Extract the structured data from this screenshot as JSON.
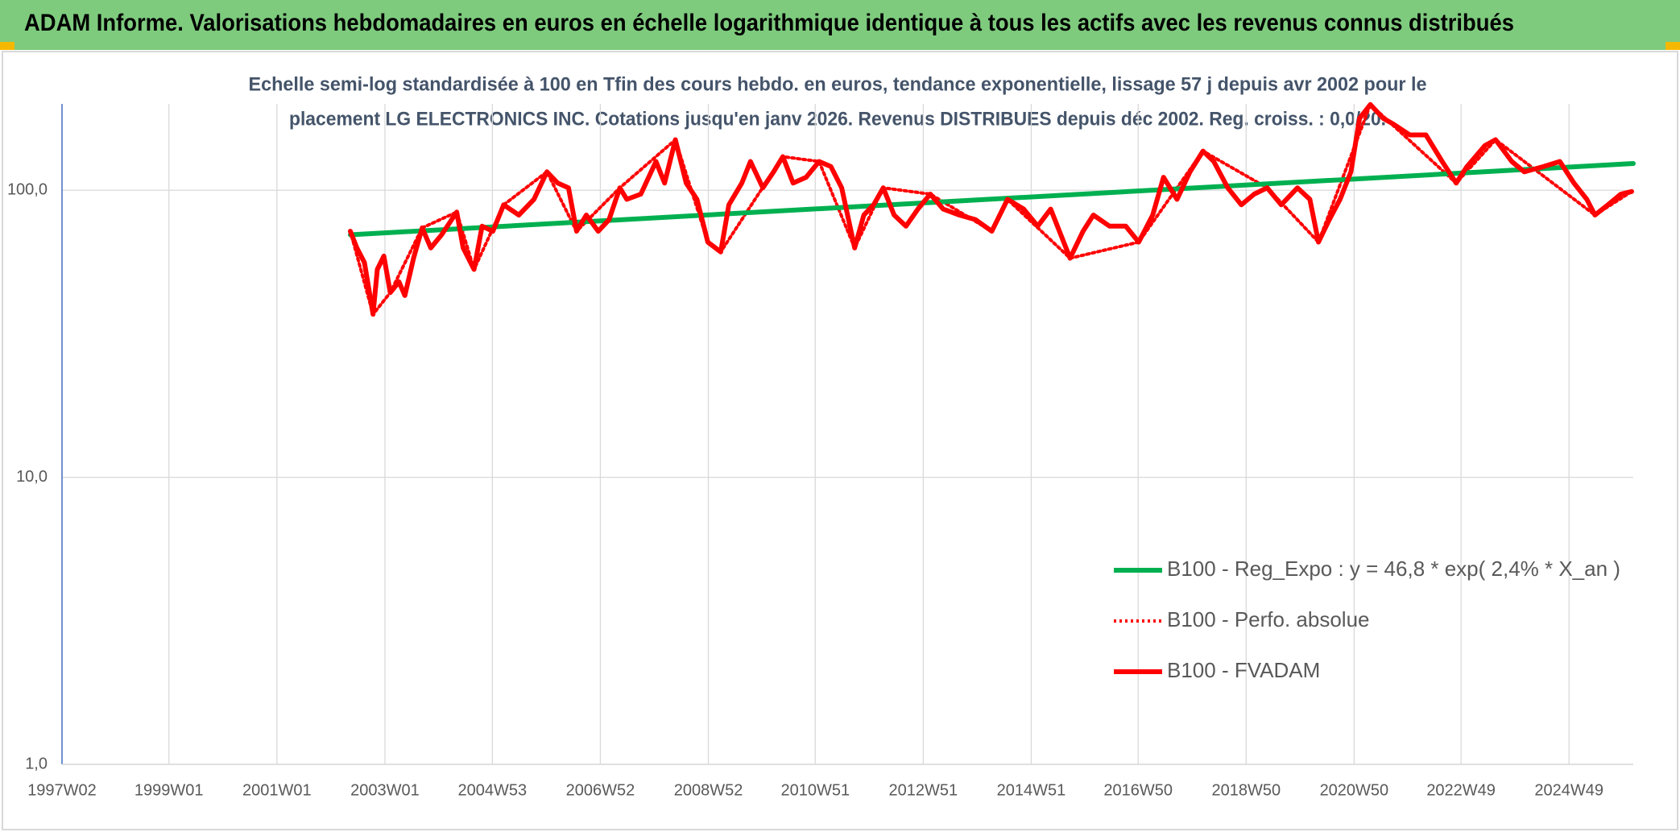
{
  "chart_data": {
    "type": "line",
    "title": "ADAM Informe. Valorisations hebdomadaires en euros en échelle logarithmique identique à tous les actifs avec les revenus connus distribués",
    "subtitle": [
      "Echelle semi-log standardisée à 100 en Tfin des cours hebdo. en euros, tendance exponentielle, lissage 57 j depuis avr 2002 pour le",
      "placement LG ELECTRONICS INC. Cotations jusqu'en janv 2026. Revenus DISTRIBUES depuis déc 2002. Reg. croiss. : 0,0/20."
    ],
    "log_y": true,
    "grid": true,
    "legend": "right",
    "xlim": [
      1997.02,
      2026.12
    ],
    "ylim": [
      1,
      200
    ],
    "xticks": [
      {
        "value": 1997.02,
        "label": "1997W02"
      },
      {
        "value": 1999.0,
        "label": "1999W01"
      },
      {
        "value": 2001.0,
        "label": "2001W01"
      },
      {
        "value": 2003.0,
        "label": "2003W01"
      },
      {
        "value": 2004.99,
        "label": "2004W53"
      },
      {
        "value": 2006.99,
        "label": "2006W52"
      },
      {
        "value": 2008.99,
        "label": "2008W52"
      },
      {
        "value": 2010.97,
        "label": "2010W51"
      },
      {
        "value": 2012.97,
        "label": "2012W51"
      },
      {
        "value": 2014.97,
        "label": "2014W51"
      },
      {
        "value": 2016.95,
        "label": "2016W50"
      },
      {
        "value": 2018.95,
        "label": "2018W50"
      },
      {
        "value": 2020.95,
        "label": "2020W50"
      },
      {
        "value": 2022.93,
        "label": "2022W49"
      },
      {
        "value": 2024.93,
        "label": "2024W49"
      }
    ],
    "yticks": [
      {
        "value": 1,
        "label": "1,0"
      },
      {
        "value": 10,
        "label": "10,0"
      },
      {
        "value": 100,
        "label": "100,0"
      }
    ],
    "series": [
      {
        "name": "B100 - Reg_Expo : y = 46,8 * exp( 2,4% *  X_an )",
        "color": "#00b050",
        "style": "solid",
        "x": [
          2002.36,
          2026.12
        ],
        "values": [
          70,
          124
        ]
      },
      {
        "name": "B100 - Perfo. absolue",
        "color": "#ff0000",
        "style": "dotted",
        "x": [
          2002.36,
          2002.78,
          2003.1,
          2003.69,
          2004.33,
          2004.65,
          2005.2,
          2006.0,
          2006.55,
          2007.35,
          2008.38,
          2008.98,
          2009.22,
          2010.37,
          2011.04,
          2011.7,
          2012.23,
          2013.1,
          2014.24,
          2014.53,
          2015.69,
          2016.96,
          2018.15,
          2019.34,
          2020.29,
          2021.25,
          2022.84,
          2023.57,
          2025.41,
          2026.09
        ],
        "values": [
          72,
          37,
          44,
          74,
          84,
          53,
          89,
          116,
          72,
          102,
          150,
          66,
          61,
          131,
          126,
          63,
          102,
          97,
          72,
          93,
          58,
          66,
          137,
          102,
          66,
          199,
          106,
          150,
          82,
          99
        ]
      },
      {
        "name": "B100 - FVADAM",
        "color": "#ff0000",
        "style": "solid",
        "x": [
          2002.36,
          2002.48,
          2002.62,
          2002.68,
          2002.78,
          2002.86,
          2002.98,
          2003.1,
          2003.26,
          2003.37,
          2003.53,
          2003.69,
          2003.85,
          2004.05,
          2004.33,
          2004.45,
          2004.65,
          2004.8,
          2005.0,
          2005.2,
          2005.48,
          2005.76,
          2006.0,
          2006.2,
          2006.4,
          2006.55,
          2006.73,
          2006.95,
          2007.15,
          2007.35,
          2007.48,
          2007.74,
          2008.02,
          2008.18,
          2008.38,
          2008.58,
          2008.78,
          2008.98,
          2009.22,
          2009.37,
          2009.61,
          2009.77,
          2010.0,
          2010.2,
          2010.37,
          2010.56,
          2010.8,
          2011.04,
          2011.26,
          2011.46,
          2011.7,
          2011.87,
          2012.05,
          2012.23,
          2012.43,
          2012.65,
          2012.87,
          2013.1,
          2013.34,
          2013.64,
          2013.94,
          2014.24,
          2014.53,
          2014.83,
          2015.09,
          2015.33,
          2015.69,
          2015.93,
          2016.12,
          2016.42,
          2016.72,
          2016.96,
          2017.22,
          2017.42,
          2017.67,
          2017.91,
          2018.15,
          2018.35,
          2018.61,
          2018.86,
          2019.1,
          2019.34,
          2019.6,
          2019.9,
          2020.13,
          2020.29,
          2020.49,
          2020.69,
          2020.89,
          2021.05,
          2021.25,
          2021.49,
          2021.68,
          2021.98,
          2022.28,
          2022.58,
          2022.84,
          2023.04,
          2023.37,
          2023.57,
          2023.87,
          2024.1,
          2024.46,
          2024.76,
          2025.02,
          2025.26,
          2025.41,
          2025.65,
          2025.89,
          2026.09
        ],
        "values": [
          72,
          63,
          56,
          48,
          37,
          53,
          59,
          44,
          48,
          43,
          58,
          74,
          63,
          70,
          84,
          63,
          53,
          75,
          72,
          89,
          82,
          93,
          116,
          106,
          102,
          72,
          82,
          72,
          79,
          102,
          93,
          97,
          126,
          106,
          150,
          106,
          93,
          66,
          61,
          89,
          106,
          126,
          102,
          116,
          131,
          106,
          111,
          126,
          121,
          102,
          63,
          82,
          89,
          102,
          82,
          75,
          86,
          97,
          86,
          82,
          79,
          72,
          93,
          86,
          75,
          86,
          58,
          72,
          82,
          75,
          75,
          66,
          82,
          111,
          93,
          116,
          137,
          126,
          102,
          89,
          97,
          102,
          89,
          102,
          93,
          66,
          79,
          93,
          116,
          178,
          199,
          178,
          170,
          156,
          156,
          126,
          106,
          121,
          143,
          150,
          126,
          116,
          121,
          126,
          106,
          93,
          82,
          89,
          97,
          99
        ]
      }
    ]
  }
}
